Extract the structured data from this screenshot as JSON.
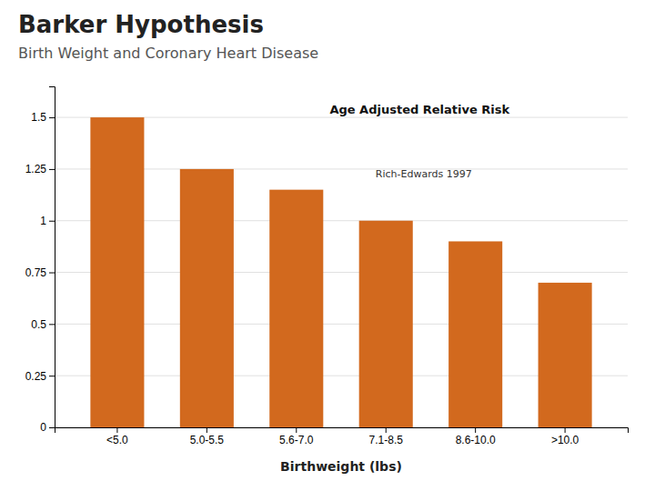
{
  "chart_data": {
    "type": "bar",
    "title": "Barker Hypothesis",
    "subtitle": "Birth Weight and Coronary Heart Disease",
    "categories": [
      "<5.0",
      "5.0-5.5",
      "5.6-7.0",
      "7.1-8.5",
      "8.6-10.0",
      ">10.0"
    ],
    "values": [
      1.5,
      1.25,
      1.15,
      1.0,
      0.9,
      0.7
    ],
    "color": "#D2691E",
    "x_label": "Birthweight (lbs)",
    "annotations": [
      "Age Adjusted Relative Risk",
      "Rich-Edwards 1997"
    ],
    "ylim": [
      0,
      1.65
    ],
    "yticks": [
      0,
      0.25,
      0.5,
      0.75,
      1,
      1.25,
      1.5
    ],
    "grid": true
  }
}
